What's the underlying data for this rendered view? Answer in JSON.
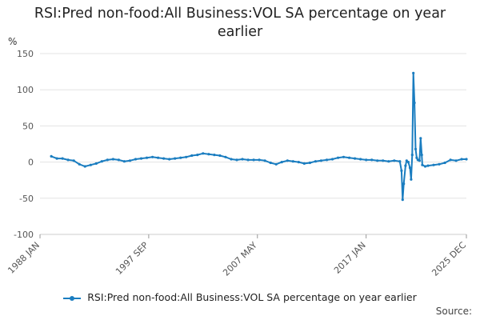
{
  "chart_data": {
    "type": "line",
    "title": "RSI:Pred non-food:All Business:VOL SA percentage on year earlier",
    "ylabel": "%",
    "xlabel": "",
    "ylim": [
      -100,
      150
    ],
    "yticks": [
      -100,
      -50,
      0,
      50,
      100,
      150
    ],
    "xticks": [
      {
        "label": "1988 JAN",
        "t": 1988.0
      },
      {
        "label": "1997 SEP",
        "t": 1997.667
      },
      {
        "label": "2007 MAY",
        "t": 2007.333
      },
      {
        "label": "2017 JAN",
        "t": 2017.0
      },
      {
        "label": "2025 DEC",
        "t": 2025.917
      }
    ],
    "xlim": [
      1988.0,
      2025.917
    ],
    "grid": true,
    "legend_position": "bottom",
    "color": "#1a7dc0",
    "series": [
      {
        "name": "RSI:Pred non-food:All Business:VOL SA percentage on year earlier",
        "points": [
          [
            1989.0,
            8
          ],
          [
            1989.5,
            5
          ],
          [
            1990.0,
            5
          ],
          [
            1990.5,
            3
          ],
          [
            1991.0,
            2
          ],
          [
            1991.5,
            -3
          ],
          [
            1992.0,
            -6
          ],
          [
            1992.5,
            -4
          ],
          [
            1993.0,
            -2
          ],
          [
            1993.5,
            1
          ],
          [
            1994.0,
            3
          ],
          [
            1994.5,
            4
          ],
          [
            1995.0,
            3
          ],
          [
            1995.5,
            1
          ],
          [
            1996.0,
            2
          ],
          [
            1996.5,
            4
          ],
          [
            1997.0,
            5
          ],
          [
            1997.5,
            6
          ],
          [
            1998.0,
            7
          ],
          [
            1998.5,
            6
          ],
          [
            1999.0,
            5
          ],
          [
            1999.5,
            4
          ],
          [
            2000.0,
            5
          ],
          [
            2000.5,
            6
          ],
          [
            2001.0,
            7
          ],
          [
            2001.5,
            9
          ],
          [
            2002.0,
            10
          ],
          [
            2002.5,
            12
          ],
          [
            2003.0,
            11
          ],
          [
            2003.5,
            10
          ],
          [
            2004.0,
            9
          ],
          [
            2004.5,
            7
          ],
          [
            2005.0,
            4
          ],
          [
            2005.5,
            3
          ],
          [
            2006.0,
            4
          ],
          [
            2006.5,
            3
          ],
          [
            2007.0,
            3
          ],
          [
            2007.5,
            3
          ],
          [
            2008.0,
            2
          ],
          [
            2008.5,
            -1
          ],
          [
            2009.0,
            -3
          ],
          [
            2009.5,
            0
          ],
          [
            2010.0,
            2
          ],
          [
            2010.5,
            1
          ],
          [
            2011.0,
            0
          ],
          [
            2011.5,
            -2
          ],
          [
            2012.0,
            -1
          ],
          [
            2012.5,
            1
          ],
          [
            2013.0,
            2
          ],
          [
            2013.5,
            3
          ],
          [
            2014.0,
            4
          ],
          [
            2014.5,
            6
          ],
          [
            2015.0,
            7
          ],
          [
            2015.5,
            6
          ],
          [
            2016.0,
            5
          ],
          [
            2016.5,
            4
          ],
          [
            2017.0,
            3
          ],
          [
            2017.5,
            3
          ],
          [
            2018.0,
            2
          ],
          [
            2018.5,
            2
          ],
          [
            2019.0,
            1
          ],
          [
            2019.5,
            2
          ],
          [
            2020.0,
            1
          ],
          [
            2020.15,
            -12
          ],
          [
            2020.25,
            -52
          ],
          [
            2020.35,
            -30
          ],
          [
            2020.5,
            -5
          ],
          [
            2020.6,
            2
          ],
          [
            2020.75,
            0
          ],
          [
            2020.9,
            -8
          ],
          [
            2021.0,
            -24
          ],
          [
            2021.1,
            10
          ],
          [
            2021.2,
            123
          ],
          [
            2021.3,
            82
          ],
          [
            2021.4,
            18
          ],
          [
            2021.5,
            6
          ],
          [
            2021.6,
            3
          ],
          [
            2021.75,
            2
          ],
          [
            2021.85,
            33
          ],
          [
            2021.95,
            10
          ],
          [
            2022.0,
            -4
          ],
          [
            2022.25,
            -6
          ],
          [
            2022.5,
            -5
          ],
          [
            2023.0,
            -4
          ],
          [
            2023.5,
            -3
          ],
          [
            2024.0,
            -1
          ],
          [
            2024.5,
            3
          ],
          [
            2025.0,
            2
          ],
          [
            2025.5,
            4
          ],
          [
            2025.917,
            4
          ]
        ]
      }
    ]
  },
  "legend": {
    "label": "RSI:Pred non-food:All Business:VOL SA percentage on year earlier"
  },
  "footer": {
    "source_label": "Source:"
  }
}
